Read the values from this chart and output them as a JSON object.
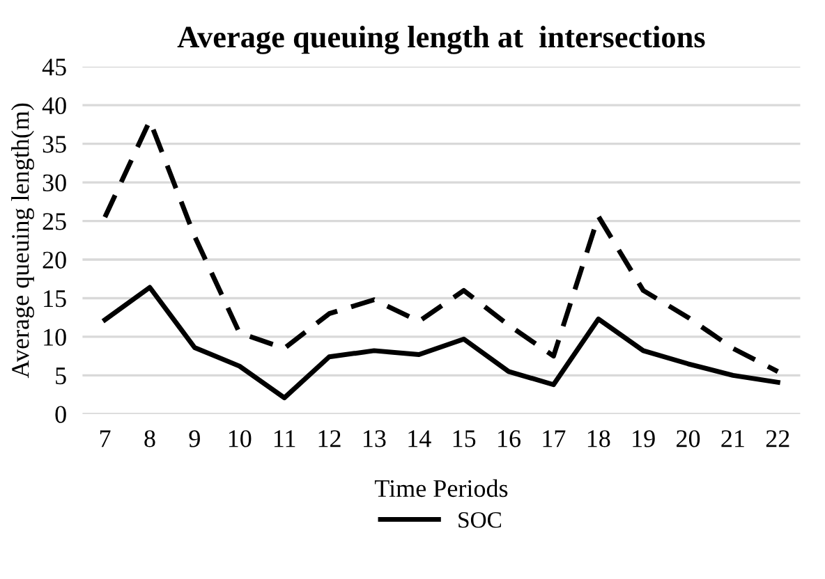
{
  "chart_data": {
    "type": "line",
    "title": "Average queuing length at  intersections",
    "xlabel": "Time Periods",
    "ylabel": "Average queuing length(m)",
    "categories": [
      "7",
      "8",
      "9",
      "10",
      "11",
      "12",
      "13",
      "14",
      "15",
      "16",
      "17",
      "18",
      "19",
      "20",
      "21",
      "22"
    ],
    "series": [
      {
        "name": "SOC",
        "color": "#000000",
        "line_style": "solid",
        "values": [
          12.2,
          16.4,
          8.6,
          6.2,
          2.1,
          7.4,
          8.2,
          7.7,
          9.7,
          5.5,
          3.8,
          12.3,
          8.2,
          6.5,
          5.0,
          4.1
        ]
      },
      {
        "color": "#000000",
        "line_style": "dashed",
        "values": [
          25.5,
          38.0,
          23.0,
          10.5,
          8.5,
          13.0,
          14.8,
          12.0,
          16.0,
          11.5,
          7.5,
          25.6,
          16.0,
          12.5,
          8.5,
          5.5
        ]
      }
    ],
    "ylim": [
      0,
      45
    ],
    "yticks": [
      0,
      5,
      10,
      15,
      20,
      25,
      30,
      35,
      40,
      45
    ],
    "grid": "y",
    "legend": "bottom",
    "marker": "none"
  }
}
